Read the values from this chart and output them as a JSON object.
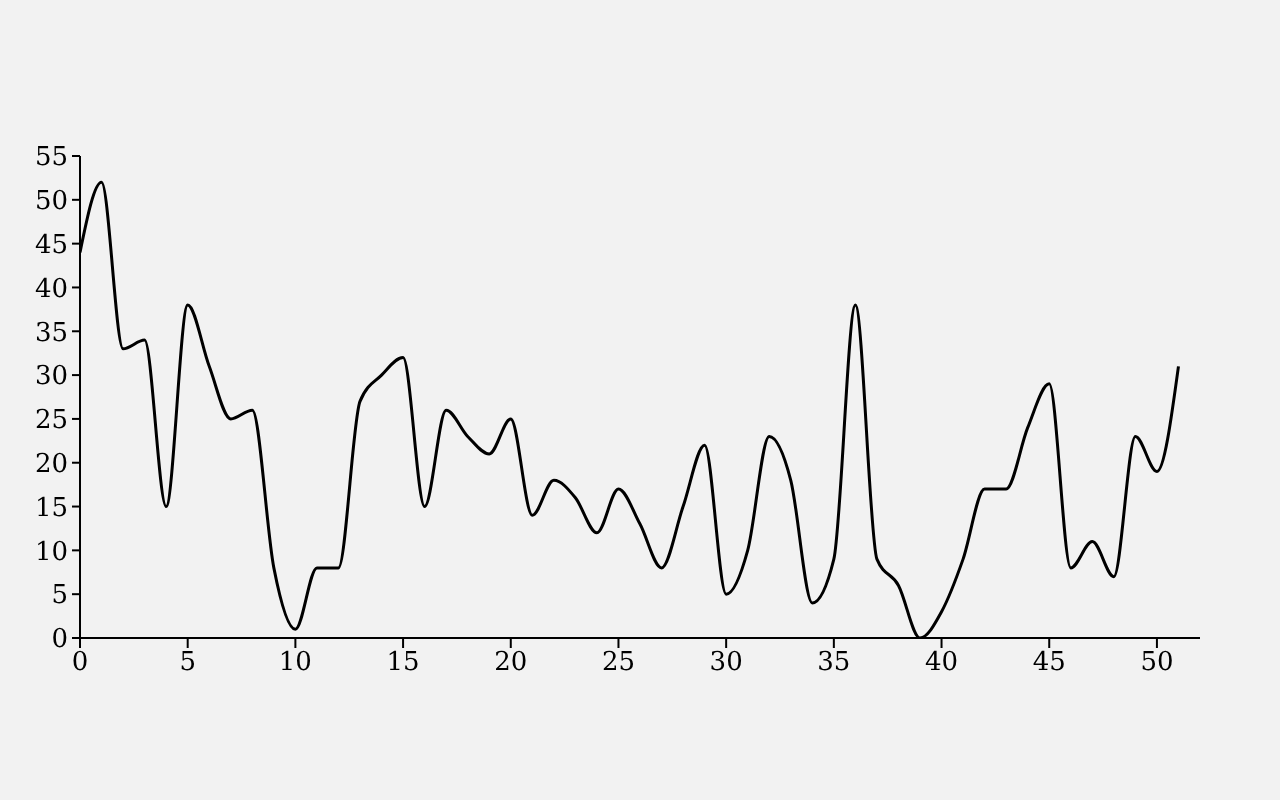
{
  "chart_data": {
    "type": "line",
    "x": [
      0,
      1,
      2,
      3,
      4,
      5,
      6,
      7,
      8,
      9,
      10,
      11,
      12,
      13,
      14,
      15,
      16,
      17,
      18,
      19,
      20,
      21,
      22,
      23,
      24,
      25,
      26,
      27,
      28,
      29,
      30,
      31,
      32,
      33,
      34,
      35,
      36,
      37,
      38,
      39,
      40,
      41,
      42,
      43,
      44,
      45,
      46,
      47,
      48,
      49,
      50,
      51
    ],
    "series": [
      {
        "color": "#000000",
        "values": [
          44,
          52,
          33,
          34,
          15,
          38,
          31,
          25,
          26,
          8,
          1,
          8,
          8,
          27,
          30,
          32,
          15,
          26,
          23,
          21,
          25,
          14,
          18,
          16,
          12,
          17,
          13,
          8,
          15,
          22,
          5,
          10,
          23,
          18,
          4,
          9,
          38,
          9,
          6,
          0,
          3,
          9,
          17,
          17,
          24,
          29,
          8,
          11,
          7,
          23,
          19,
          31
        ]
      }
    ],
    "xlim": [
      0,
      52
    ],
    "xticks": [
      0,
      5,
      10,
      15,
      20,
      25,
      30,
      35,
      40,
      45,
      50
    ],
    "ylim": [
      0,
      55
    ],
    "yticks": [
      0,
      5,
      10,
      15,
      20,
      25,
      30,
      35,
      40,
      45,
      50,
      55
    ],
    "grid": false,
    "legend": false,
    "marker": "none",
    "line_style": "solid"
  }
}
